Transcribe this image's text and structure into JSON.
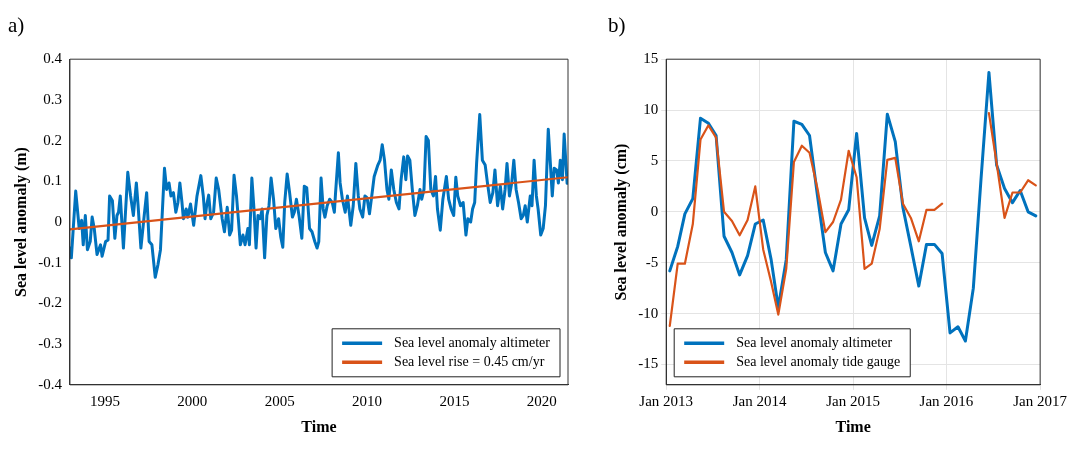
{
  "chart_data": [
    {
      "type": "line",
      "title": "a)",
      "xlabel": "Time",
      "ylabel": "Sea level anomaly (m)",
      "xlim": [
        1993,
        2021.5
      ],
      "xticks": [
        1995,
        2000,
        2005,
        2010,
        2015,
        2020
      ],
      "ylim": [
        -0.4,
        0.4
      ],
      "yticks": [
        -0.4,
        -0.3,
        -0.2,
        -0.1,
        0,
        0.1,
        0.2,
        0.3,
        0.4
      ],
      "legend": "bottom right",
      "marker": "none",
      "series": [
        {
          "name": "Sea level anomaly altimeter",
          "color": "#0072bd",
          "x": [
            1993.0,
            1993.08,
            1993.33,
            1993.53,
            1993.67,
            1993.76,
            1993.88,
            1994.0,
            1994.16,
            1994.27,
            1994.39,
            1994.55,
            1994.75,
            1994.84,
            1995.04,
            1995.18,
            1995.27,
            1995.43,
            1995.57,
            1995.69,
            1995.78,
            1995.88,
            1996.06,
            1996.31,
            1996.47,
            1996.63,
            1996.8,
            1996.9,
            1997.06,
            1997.25,
            1997.39,
            1997.53,
            1997.69,
            1997.88,
            1998.04,
            1998.18,
            1998.41,
            1998.53,
            1998.67,
            1998.78,
            1998.92,
            1999.06,
            1999.18,
            1999.29,
            1999.41,
            1999.49,
            1999.65,
            1999.75,
            1999.9,
            2000.08,
            2000.27,
            2000.49,
            2000.63,
            2000.73,
            2000.82,
            2000.94,
            2001.06,
            2001.22,
            2001.37,
            2001.51,
            2001.71,
            2001.84,
            2002.0,
            2002.14,
            2002.25,
            2002.39,
            2002.53,
            2002.65,
            2002.75,
            2002.9,
            2003.02,
            2003.18,
            2003.27,
            2003.41,
            2003.53,
            2003.65,
            2003.76,
            2003.88,
            2004.0,
            2004.14,
            2004.27,
            2004.39,
            2004.51,
            2004.65,
            2004.78,
            2004.94,
            2005.06,
            2005.18,
            2005.29,
            2005.43,
            2005.57,
            2005.73,
            2005.84,
            2005.96,
            2006.12,
            2006.27,
            2006.41,
            2006.55,
            2006.71,
            2006.85,
            2007.01,
            2007.14,
            2007.24,
            2007.37,
            2007.49,
            2007.59,
            2007.72,
            2007.86,
            2008.01,
            2008.13,
            2008.2,
            2008.36,
            2008.46,
            2008.59,
            2008.75,
            2008.88,
            2009.07,
            2009.21,
            2009.36,
            2009.5,
            2009.59,
            2009.75,
            2009.88,
            2010.0,
            2010.14,
            2010.27,
            2010.41,
            2010.62,
            2010.75,
            2010.87,
            2011.0,
            2011.14,
            2011.25,
            2011.39,
            2011.53,
            2011.68,
            2011.83,
            2011.95,
            2012.1,
            2012.22,
            2012.32,
            2012.45,
            2012.59,
            2012.74,
            2012.88,
            2013.03,
            2013.13,
            2013.26,
            2013.38,
            2013.51,
            2013.65,
            2013.8,
            2013.92,
            2014.03,
            2014.19,
            2014.34,
            2014.54,
            2014.67,
            2014.81,
            2014.96,
            2015.08,
            2015.19,
            2015.35,
            2015.5,
            2015.66,
            2015.77,
            2015.93,
            2016.04,
            2016.16,
            2016.27,
            2016.45,
            2016.6,
            2016.76,
            2016.89,
            2017.05,
            2017.2,
            2017.32,
            2017.47,
            2017.63,
            2017.76,
            2017.9,
            2018.01,
            2018.15,
            2018.28,
            2018.4,
            2018.53,
            2018.67,
            2018.82,
            2018.94,
            2019.05,
            2019.17,
            2019.34,
            2019.44,
            2019.56,
            2019.69,
            2019.79,
            2019.94,
            2020.08,
            2020.21,
            2020.37,
            2020.48,
            2020.6,
            2020.71,
            2020.85,
            2020.95,
            2021.06,
            2021.18,
            2021.28,
            2021.45
          ],
          "values": [
            -0.064,
            -0.088,
            0.076,
            -0.016,
            0.004,
            -0.056,
            0.016,
            -0.068,
            -0.048,
            0.012,
            -0.016,
            -0.08,
            -0.056,
            -0.084,
            -0.048,
            -0.044,
            0.064,
            0.052,
            -0.04,
            0.016,
            0.024,
            0.064,
            -0.064,
            0.122,
            0.064,
            0.016,
            0.096,
            0.04,
            -0.064,
            0.016,
            0.072,
            -0.048,
            -0.056,
            -0.136,
            -0.104,
            -0.068,
            0.132,
            0.08,
            0.096,
            0.064,
            0.072,
            0.024,
            0.048,
            0.096,
            0.048,
            0.008,
            0.032,
            0.012,
            0.044,
            -0.008,
            0.064,
            0.114,
            0.064,
            0.008,
            0.04,
            0.066,
            0.008,
            0.024,
            0.108,
            0.08,
            0.008,
            -0.024,
            0.036,
            -0.032,
            -0.02,
            0.115,
            0.064,
            0,
            -0.056,
            -0.032,
            -0.056,
            -0.016,
            -0.056,
            0.108,
            0.032,
            -0.064,
            0.016,
            0.008,
            0.032,
            -0.088,
            0.016,
            0.04,
            0.108,
            0.056,
            -0.016,
            0.008,
            -0.036,
            -0.062,
            0.048,
            0.118,
            0.072,
            0.012,
            0.024,
            0.056,
            0.012,
            -0.04,
            0.088,
            0.084,
            -0.016,
            -0.024,
            -0.048,
            -0.064,
            -0.048,
            0.108,
            0.032,
            0.012,
            0.04,
            0.056,
            0.048,
            0.024,
            0.072,
            0.17,
            0.096,
            0.056,
            0.024,
            0.064,
            -0.008,
            0.04,
            0.144,
            0.064,
            0.032,
            0.012,
            0.064,
            0.06,
            0.02,
            0.064,
            0.112,
            0.14,
            0.152,
            0.19,
            0.152,
            0.08,
            0.056,
            0.128,
            0.08,
            0.048,
            0.032,
            0.104,
            0.16,
            0.104,
            0.162,
            0.152,
            0.08,
            0.016,
            0.04,
            0.08,
            0.056,
            0.08,
            0.21,
            0.2,
            0.08,
            0.064,
            0.112,
            0.032,
            -0.02,
            0.056,
            0.112,
            0.056,
            0.032,
            0.016,
            0.11,
            0.064,
            0.04,
            0.048,
            -0.032,
            0.008,
            0,
            0.032,
            0.048,
            0.144,
            0.264,
            0.152,
            0.14,
            0.096,
            0.048,
            0.072,
            0.128,
            0.04,
            0.088,
            0.032,
            0.08,
            0.144,
            0.064,
            0.096,
            0.152,
            0.08,
            0.048,
            0.008,
            0.016,
            0.04,
            0,
            0.064,
            0.04,
            0.152,
            0.064,
            0.032,
            -0.032,
            -0.016,
            0.04,
            0.228,
            0.152,
            0.064,
            0.132,
            0.128,
            0.096,
            0.152,
            0.104,
            0.216,
            0.095
          ]
        },
        {
          "name": "Sea level rise = 0.45 cm/yr",
          "color": "#d95319",
          "x": [
            1993,
            2021.5
          ],
          "values": [
            -0.018,
            0.11
          ]
        }
      ]
    },
    {
      "type": "line",
      "title": "b)",
      "xlabel": "Time",
      "ylabel": "Sea level anomaly (cm)",
      "xlim": [
        "2013-01",
        "2017-01"
      ],
      "xticks": [
        {
          "value": "2013-01",
          "label": "Jan 2013"
        },
        {
          "value": "2014-01",
          "label": "Jan 2014"
        },
        {
          "value": "2015-01",
          "label": "Jan 2015"
        },
        {
          "value": "2016-01",
          "label": "Jan 2016"
        },
        {
          "value": "2017-01",
          "label": "Jan 2017"
        }
      ],
      "ylim": [
        -17,
        15
      ],
      "yticks": [
        -15,
        -10,
        -5,
        0,
        5,
        10,
        15
      ],
      "grid": true,
      "legend": "bottom left",
      "marker": "none",
      "x": [
        "2013-01-15",
        "2013-02-15",
        "2013-03-15",
        "2013-04-15",
        "2013-05-15",
        "2013-06-15",
        "2013-07-15",
        "2013-08-15",
        "2013-09-15",
        "2013-10-15",
        "2013-11-15",
        "2013-12-15",
        "2014-01-15",
        "2014-02-15",
        "2014-03-15",
        "2014-04-15",
        "2014-05-15",
        "2014-06-15",
        "2014-07-15",
        "2014-08-15",
        "2014-09-15",
        "2014-10-15",
        "2014-11-15",
        "2014-12-15",
        "2015-01-15",
        "2015-02-15",
        "2015-03-15",
        "2015-04-15",
        "2015-05-15",
        "2015-06-15",
        "2015-07-15",
        "2015-08-15",
        "2015-09-15",
        "2015-10-15",
        "2015-11-15",
        "2015-12-15",
        "2016-01-15",
        "2016-02-15",
        "2016-03-15",
        "2016-04-15",
        "2016-05-15",
        "2016-06-15",
        "2016-07-15",
        "2016-08-15",
        "2016-09-15",
        "2016-10-15",
        "2016-11-15",
        "2016-12-15"
      ],
      "series": [
        {
          "name": "Sea level anomaly altimeter",
          "color": "#0072bd",
          "values": [
            -5.8,
            -3.4,
            -0.2,
            1.3,
            9.2,
            8.7,
            7.5,
            -2.4,
            -4.0,
            -6.2,
            -4.3,
            -1.2,
            -0.8,
            -4.7,
            -9.4,
            -4.7,
            8.9,
            8.6,
            7.5,
            1.6,
            -4.0,
            -5.8,
            -1.2,
            0.2,
            7.7,
            -0.6,
            -3.3,
            -0.4,
            9.6,
            6.9,
            0.4,
            -3.4,
            -7.3,
            -3.2,
            -3.2,
            -4.1,
            -11.9,
            -11.3,
            -12.7,
            -7.5,
            3.2,
            13.7,
            4.6,
            2.3,
            0.9,
            2.1,
            0,
            -0.4
          ]
        },
        {
          "name": "Sea level anomaly tide gauge",
          "color": "#d95319",
          "values": [
            -11.2,
            -5.1,
            -5.1,
            -1.2,
            7.1,
            8.5,
            7.3,
            0,
            -0.9,
            -2.3,
            -0.8,
            2.5,
            -3.7,
            -6.9,
            -10.1,
            -5.6,
            4.9,
            6.5,
            5.8,
            2.3,
            -2.0,
            -1.0,
            1.2,
            6.0,
            3.4,
            -5.6,
            -5.1,
            -1.7,
            5.1,
            5.3,
            0.8,
            -0.6,
            -2.9,
            0.2,
            0.2,
            0.8,
            null,
            null,
            null,
            null,
            null,
            9.7,
            4.8,
            -0.6,
            1.9,
            1.9,
            3.1,
            2.6
          ]
        }
      ]
    }
  ]
}
